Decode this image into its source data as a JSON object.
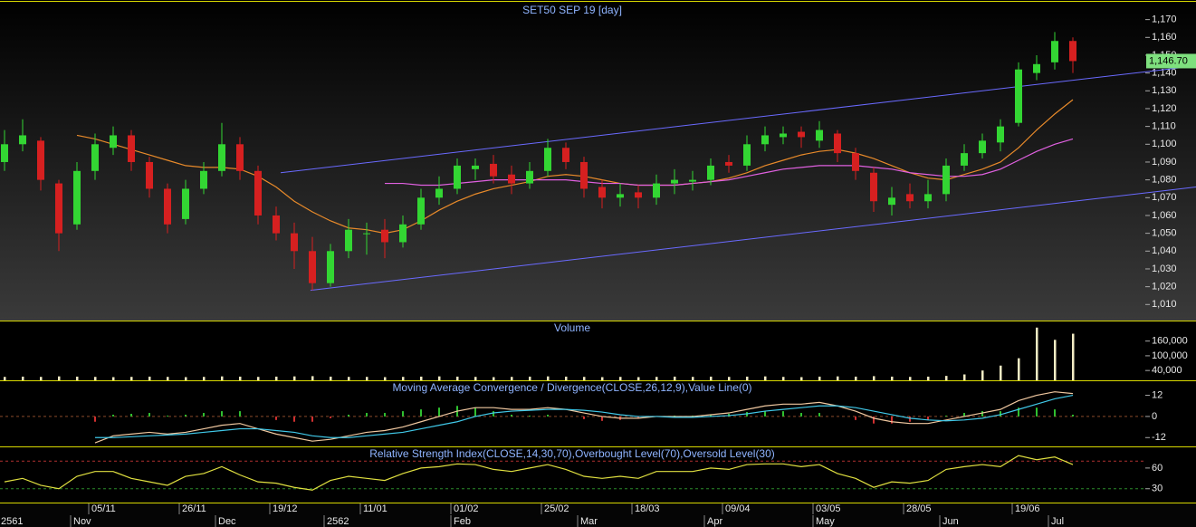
{
  "chart_data": [
    {
      "type": "candlestick",
      "title": "SET50 SEP 19   [day]",
      "categories": [
        null,
        null,
        null,
        null,
        null,
        "05/11",
        null,
        null,
        null,
        null,
        "26/11",
        null,
        null,
        null,
        null,
        "19/12",
        null,
        null,
        null,
        null,
        "11/01",
        null,
        null,
        null,
        null,
        "01/02",
        null,
        null,
        null,
        null,
        "25/02",
        null,
        null,
        null,
        null,
        "18/03",
        null,
        null,
        null,
        null,
        "09/04",
        null,
        null,
        null,
        null,
        "03/05",
        null,
        null,
        null,
        null,
        "28/05",
        null,
        null,
        null,
        null,
        null,
        "19/06",
        null,
        null,
        null
      ],
      "months": [
        "2561",
        null,
        null,
        null,
        "Nov",
        null,
        null,
        null,
        null,
        null,
        null,
        null,
        "Dec",
        null,
        null,
        null,
        null,
        null,
        "2562",
        null,
        null,
        null,
        null,
        null,
        null,
        "Feb",
        null,
        null,
        null,
        null,
        null,
        null,
        "Mar",
        null,
        null,
        null,
        null,
        null,
        null,
        "Apr",
        null,
        null,
        null,
        null,
        null,
        "May",
        null,
        null,
        null,
        null,
        null,
        null,
        "Jun",
        null,
        null,
        null,
        null,
        null,
        "Jul",
        null
      ],
      "open": [
        1090,
        1100,
        1102,
        1078,
        1055,
        1085,
        1098,
        1105,
        1090,
        1075,
        1058,
        1075,
        1085,
        1100,
        1085,
        1060,
        1050,
        1040,
        1022,
        1040,
        1050,
        1052,
        1045,
        1055,
        1070,
        1075,
        1086,
        1089,
        1083,
        1078,
        1085,
        1098,
        1090,
        1076,
        1070,
        1073,
        1070,
        1078,
        1079,
        1080,
        1090,
        1088,
        1100,
        1104,
        1107,
        1102,
        1106,
        1095,
        1084,
        1066,
        1072,
        1068,
        1072,
        1088,
        1095,
        1101,
        1112,
        1140,
        1146,
        1158
      ],
      "high": [
        1108,
        1114,
        1104,
        1080,
        1090,
        1106,
        1110,
        1108,
        1093,
        1078,
        1080,
        1090,
        1112,
        1104,
        1088,
        1065,
        1056,
        1048,
        1044,
        1058,
        1056,
        1058,
        1060,
        1075,
        1082,
        1092,
        1092,
        1094,
        1088,
        1090,
        1103,
        1101,
        1093,
        1080,
        1078,
        1077,
        1083,
        1086,
        1085,
        1092,
        1094,
        1105,
        1110,
        1110,
        1110,
        1113,
        1108,
        1098,
        1087,
        1076,
        1078,
        1080,
        1092,
        1100,
        1106,
        1114,
        1146,
        1150,
        1163,
        1160
      ],
      "low": [
        1085,
        1096,
        1074,
        1040,
        1052,
        1080,
        1094,
        1085,
        1070,
        1050,
        1055,
        1072,
        1082,
        1080,
        1055,
        1046,
        1030,
        1018,
        1020,
        1036,
        1038,
        1036,
        1042,
        1052,
        1066,
        1072,
        1080,
        1078,
        1072,
        1075,
        1082,
        1086,
        1070,
        1064,
        1065,
        1064,
        1066,
        1072,
        1074,
        1077,
        1084,
        1085,
        1096,
        1100,
        1098,
        1098,
        1090,
        1080,
        1062,
        1060,
        1064,
        1064,
        1068,
        1085,
        1092,
        1096,
        1110,
        1136,
        1142,
        1140
      ],
      "close": [
        1100,
        1105,
        1080,
        1050,
        1085,
        1100,
        1105,
        1090,
        1075,
        1055,
        1075,
        1085,
        1100,
        1085,
        1060,
        1050,
        1040,
        1022,
        1040,
        1052,
        1050,
        1045,
        1055,
        1070,
        1075,
        1088,
        1088,
        1082,
        1078,
        1085,
        1098,
        1090,
        1075,
        1070,
        1072,
        1070,
        1078,
        1080,
        1080,
        1088,
        1088,
        1100,
        1105,
        1106,
        1104,
        1108,
        1095,
        1085,
        1068,
        1070,
        1068,
        1072,
        1088,
        1095,
        1102,
        1110,
        1142,
        1145,
        1158,
        1146.7
      ],
      "up_color": "#33d633",
      "down_color": "#d62020",
      "overlays": [
        {
          "color": "#e88a2a",
          "values": [
            null,
            null,
            null,
            null,
            1105,
            1103,
            1100,
            1097,
            1094,
            1091,
            1088,
            1087,
            1087,
            1086,
            1082,
            1076,
            1068,
            1062,
            1057,
            1053,
            1052,
            1050,
            1052,
            1057,
            1063,
            1068,
            1072,
            1075,
            1077,
            1079,
            1082,
            1083,
            1082,
            1080,
            1078,
            1077,
            1077,
            1077,
            1078,
            1079,
            1081,
            1084,
            1088,
            1091,
            1094,
            1096,
            1097,
            1095,
            1092,
            1088,
            1084,
            1081,
            1080,
            1083,
            1086,
            1090,
            1098,
            1108,
            1117,
            1125
          ]
        },
        {
          "color": "#e060e0",
          "values": [
            null,
            null,
            null,
            null,
            null,
            null,
            null,
            null,
            null,
            null,
            null,
            null,
            null,
            null,
            null,
            null,
            null,
            null,
            null,
            null,
            null,
            1078,
            1078,
            1077,
            1077,
            1078,
            1079,
            1080,
            1080,
            1080,
            1080,
            1080,
            1079,
            1078,
            1078,
            1077,
            1077,
            1077,
            1078,
            1079,
            1080,
            1082,
            1084,
            1086,
            1087,
            1088,
            1088,
            1088,
            1087,
            1086,
            1084,
            1083,
            1082,
            1082,
            1083,
            1086,
            1091,
            1096,
            1100,
            1103
          ]
        }
      ],
      "trendlines": [
        {
          "color": "#6a6aff",
          "x": [
            15.25,
            65.8
          ],
          "y": [
            1084,
            1144
          ]
        },
        {
          "color": "#6a6aff",
          "x": [
            16.9,
            65.8
          ],
          "y": [
            1018,
            1076
          ]
        }
      ],
      "ylim": [
        1001,
        1181
      ],
      "yticks": [
        {
          "value": 1010,
          "label": "1,010"
        },
        {
          "value": 1020,
          "label": "1,020"
        },
        {
          "value": 1030,
          "label": "1,030"
        },
        {
          "value": 1040,
          "label": "1,040"
        },
        {
          "value": 1050,
          "label": "1,050"
        },
        {
          "value": 1060,
          "label": "1,060"
        },
        {
          "value": 1070,
          "label": "1,070"
        },
        {
          "value": 1080,
          "label": "1,080"
        },
        {
          "value": 1090,
          "label": "1,090"
        },
        {
          "value": 1100,
          "label": "1,100"
        },
        {
          "value": 1110,
          "label": "1,110"
        },
        {
          "value": 1120,
          "label": "1,120"
        },
        {
          "value": 1130,
          "label": "1,130"
        },
        {
          "value": 1140,
          "label": "1,140"
        },
        {
          "value": 1150,
          "label": "1,150"
        },
        {
          "value": 1160,
          "label": "1,160"
        },
        {
          "value": 1170,
          "label": "1,170"
        }
      ],
      "last_label": {
        "value": 1146.7,
        "label": "1,146.70"
      }
    },
    {
      "type": "bar",
      "title": "Volume",
      "color": "#f2ecc4",
      "values": [
        14000,
        15000,
        14000,
        16000,
        15000,
        14000,
        13000,
        14000,
        15000,
        14000,
        13000,
        14000,
        16000,
        15000,
        14000,
        15000,
        16000,
        17000,
        15000,
        14000,
        14000,
        13000,
        14000,
        15000,
        16000,
        15000,
        14000,
        13000,
        14000,
        15000,
        16000,
        15000,
        14000,
        13000,
        14000,
        13000,
        14000,
        15000,
        14000,
        15000,
        14000,
        15000,
        16000,
        14000,
        13000,
        15000,
        16000,
        15000,
        17000,
        15000,
        14000,
        15000,
        18000,
        24000,
        40000,
        60000,
        90000,
        215000,
        165000,
        190000
      ],
      "ylim": [
        0,
        240000
      ],
      "yticks": [
        {
          "value": 40000,
          "label": "40,000"
        },
        {
          "value": 100000,
          "label": "100,000"
        },
        {
          "value": 160000,
          "label": "160,000"
        }
      ]
    },
    {
      "type": "macd",
      "title": "Moving Average Convergence / Divergence(CLOSE,26,12,9),Value Line(0)",
      "series": [
        {
          "color": "#f0c8a0",
          "values": [
            null,
            null,
            null,
            null,
            null,
            -15,
            -11,
            -10,
            -9,
            -10,
            -9,
            -7,
            -5,
            -4,
            -7,
            -10,
            -12,
            -14,
            -13,
            -11,
            -9,
            -8,
            -6,
            -3,
            0,
            3,
            5,
            5,
            4,
            4,
            5,
            4,
            2,
            0,
            -1,
            -1,
            0,
            0,
            0,
            1,
            2,
            4,
            6,
            7,
            7,
            8,
            6,
            3,
            -1,
            -3,
            -4,
            -4,
            -2,
            0,
            2,
            4,
            9,
            12,
            14,
            13
          ]
        },
        {
          "color": "#40c8e8",
          "values": [
            null,
            null,
            null,
            null,
            null,
            -12,
            -12,
            -11.5,
            -11,
            -10.5,
            -10,
            -9,
            -8,
            -7,
            -7,
            -8,
            -9,
            -11,
            -12,
            -12,
            -11,
            -10,
            -9,
            -7,
            -5,
            -3,
            0,
            2,
            3,
            3.5,
            4,
            4,
            3.5,
            2.5,
            1,
            0,
            0,
            -0.5,
            -0.5,
            0,
            0.5,
            1.5,
            3,
            4,
            5,
            6,
            6,
            5,
            3,
            1,
            -1,
            -2,
            -2.5,
            -2,
            -1,
            1,
            4,
            7,
            10,
            12
          ]
        }
      ],
      "histogram": {
        "up_color": "#30c030",
        "down_color": "#d03030",
        "values": [
          null,
          null,
          null,
          null,
          null,
          -3,
          1,
          1.5,
          2,
          0.5,
          1,
          2,
          3,
          3,
          0,
          -2,
          -3,
          -3,
          -1,
          1,
          2,
          2,
          3,
          4,
          5,
          6,
          5,
          3,
          1,
          0.5,
          1,
          0,
          -1.5,
          -2.5,
          -2,
          -1,
          0,
          0.5,
          0.5,
          1,
          1.5,
          2.5,
          3,
          3,
          2,
          2,
          0,
          -2,
          -4,
          -4,
          -3,
          -2,
          0.5,
          2,
          3,
          3,
          5,
          5,
          4,
          1
        ]
      },
      "levels": [
        {
          "value": 0,
          "color": "#8a4a2a"
        }
      ],
      "ylim": [
        -17,
        20
      ],
      "yticks": [
        -12,
        0,
        12
      ]
    },
    {
      "type": "line",
      "title": "Relative Strength Index(CLOSE,14,30,70),Overbought Level(70),Oversold Level(30)",
      "color": "#e0e040",
      "values": [
        40,
        45,
        35,
        30,
        48,
        55,
        55,
        45,
        40,
        35,
        48,
        52,
        62,
        50,
        40,
        38,
        32,
        28,
        42,
        48,
        45,
        42,
        52,
        60,
        62,
        66,
        65,
        58,
        55,
        60,
        65,
        58,
        48,
        45,
        48,
        45,
        55,
        55,
        55,
        60,
        58,
        65,
        66,
        66,
        62,
        65,
        52,
        45,
        32,
        40,
        38,
        42,
        58,
        62,
        65,
        62,
        78,
        72,
        76,
        65
      ],
      "levels": [
        {
          "value": 70,
          "color": "#b03030"
        },
        {
          "value": 30,
          "color": "#2a8a2a"
        }
      ],
      "ylim": [
        10,
        90
      ],
      "yticks": [
        30,
        60
      ]
    }
  ]
}
